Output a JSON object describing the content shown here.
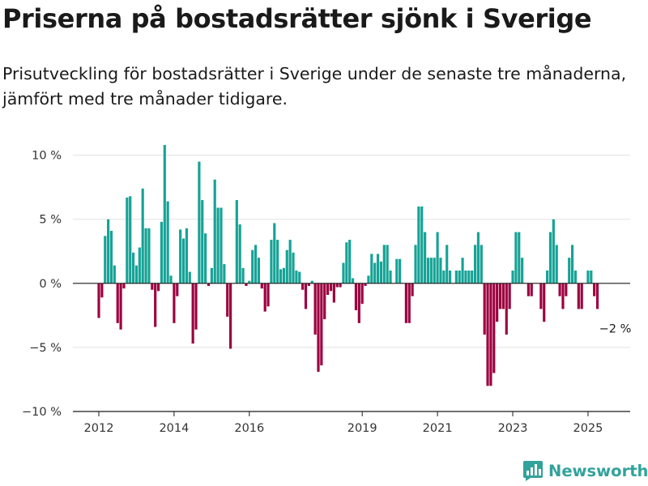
{
  "header": {
    "title": "Priserna på bostadsrätter sjönk i Sverige",
    "subtitle": "Prisutveckling för bostadsrätter i Sverige under de senaste tre månaderna, jämfört med tre månader tidigare."
  },
  "brand": {
    "name": "Newsworthy",
    "icon": "newsworthy-logo-icon",
    "color": "#32a29c"
  },
  "chart_data": {
    "type": "bar",
    "title": "Priserna på bostadsrätter sjönk i Sverige",
    "subtitle": "Prisutveckling för bostadsrätter i Sverige under de senaste tre månaderna, jämfört med tre månader tidigare.",
    "xlabel": "",
    "ylabel": "",
    "x_start": "2012-01",
    "x_end": "2025-09",
    "x_ticks": [
      "2012",
      "2014",
      "2016",
      "2019",
      "2021",
      "2023",
      "2025"
    ],
    "ylim": [
      -10,
      12
    ],
    "y_ticks": [
      10,
      5,
      0,
      -5,
      -10
    ],
    "y_tick_labels": [
      "10 %",
      "5 %",
      "0 %",
      "−5 %",
      "−10 %"
    ],
    "grid": true,
    "positive_color": "#16a396",
    "negative_color": "#9c003f",
    "end_label": "−2 %",
    "values": [
      -2.7,
      -1.1,
      3.7,
      5.0,
      4.1,
      1.4,
      -3.1,
      -3.6,
      -0.4,
      6.7,
      6.8,
      2.4,
      1.4,
      2.8,
      7.4,
      4.3,
      4.3,
      -0.5,
      -3.4,
      -0.6,
      4.8,
      10.8,
      6.4,
      0.6,
      -3.1,
      -1.0,
      4.2,
      3.5,
      4.3,
      0.9,
      -4.7,
      -3.6,
      9.5,
      6.5,
      3.9,
      -0.2,
      1.2,
      8.1,
      5.9,
      5.9,
      1.5,
      -2.6,
      -5.1,
      0.0,
      6.5,
      4.6,
      1.2,
      -0.2,
      0.2,
      2.6,
      3.0,
      2.0,
      -0.4,
      -2.2,
      -1.8,
      3.4,
      4.7,
      3.4,
      1.1,
      1.2,
      2.6,
      3.4,
      2.4,
      1.0,
      0.9,
      -0.5,
      -2.0,
      -0.2,
      0.2,
      -4.0,
      -6.9,
      -6.4,
      -2.8,
      -0.9,
      -0.6,
      -1.5,
      -0.3,
      -0.3,
      1.6,
      3.2,
      3.4,
      0.4,
      -2.1,
      -3.1,
      -1.6,
      -0.2,
      0.6,
      2.3,
      1.6,
      2.3,
      1.7,
      3.0,
      3.0,
      1.0,
      0.0,
      1.9,
      1.9,
      0.0,
      -3.1,
      -3.1,
      -1.0,
      3.0,
      6.0,
      6.0,
      4.0,
      2.0,
      2.0,
      2.0,
      4.0,
      2.0,
      1.0,
      3.0,
      1.0,
      0.0,
      1.0,
      1.0,
      2.0,
      1.0,
      1.0,
      1.0,
      3.0,
      4.0,
      3.0,
      -4.0,
      -8.0,
      -8.0,
      -7.0,
      -3.0,
      -2.0,
      -2.0,
      -4.0,
      -2.0,
      1.0,
      4.0,
      4.0,
      2.0,
      0.0,
      -1.0,
      -1.0,
      0.0,
      0.0,
      -2.0,
      -3.0,
      1.0,
      4.0,
      5.0,
      3.0,
      -1.0,
      -2.0,
      -1.0,
      2.0,
      3.0,
      1.0,
      -2.0,
      -2.0,
      0.0,
      1.0,
      1.0,
      -1.0,
      -2.0
    ]
  }
}
